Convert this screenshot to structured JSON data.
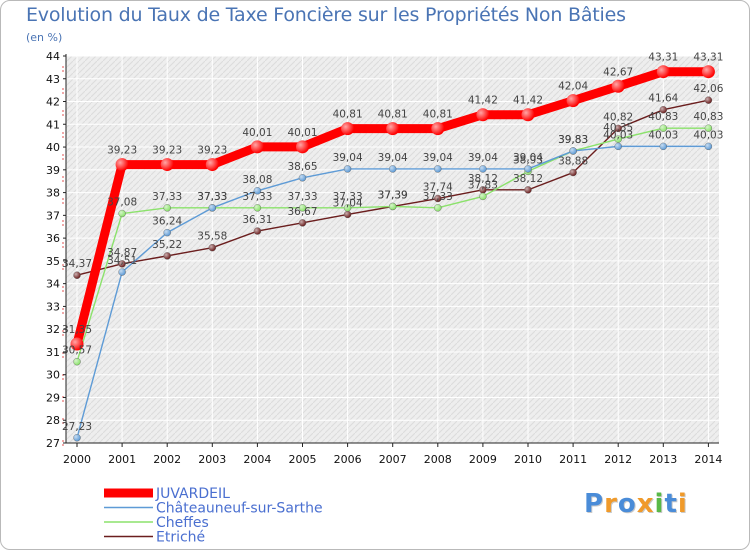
{
  "chart_data": {
    "type": "line",
    "title": "Evolution du Taux de Taxe Foncière sur les Propriétés Non Bâties",
    "subtitle": "(en %)",
    "x": [
      "2000",
      "2001",
      "2002",
      "2003",
      "2004",
      "2005",
      "2006",
      "2007",
      "2008",
      "2009",
      "2010",
      "2011",
      "2012",
      "2013",
      "2014"
    ],
    "ylim": [
      27,
      44
    ],
    "yticks": [
      27,
      28,
      29,
      30,
      31,
      32,
      33,
      34,
      35,
      36,
      37,
      38,
      39,
      40,
      41,
      42,
      43,
      44
    ],
    "grid": true,
    "legend_position": "bottom-left",
    "series": [
      {
        "name": "JUVARDEIL",
        "color": "#ff0000",
        "labels": true,
        "values": [
          31.35,
          39.23,
          39.23,
          39.23,
          40.01,
          40.01,
          40.81,
          40.81,
          40.81,
          41.42,
          41.42,
          42.04,
          42.67,
          43.31,
          43.31
        ]
      },
      {
        "name": "Châteauneuf-sur-Sarthe",
        "color": "#5e9bd6",
        "labels": true,
        "values": [
          27.23,
          34.51,
          36.24,
          37.33,
          38.08,
          38.65,
          39.04,
          39.04,
          39.04,
          39.04,
          39.04,
          39.83,
          40.03,
          40.03,
          40.03
        ]
      },
      {
        "name": "Cheffes",
        "color": "#8be26b",
        "labels": true,
        "values": [
          30.57,
          37.08,
          37.33,
          37.33,
          37.33,
          37.33,
          37.33,
          37.39,
          37.33,
          37.83,
          38.93,
          39.83,
          40.35,
          40.83,
          40.83
        ]
      },
      {
        "name": "Etriché",
        "color": "#6b1e1e",
        "labels": true,
        "values": [
          34.37,
          34.87,
          35.22,
          35.58,
          36.31,
          36.67,
          37.04,
          37.39,
          37.74,
          38.12,
          38.12,
          38.88,
          40.82,
          41.64,
          42.06
        ]
      }
    ]
  },
  "logo": {
    "letters": [
      "P",
      "r",
      "o",
      "x",
      "i",
      "t",
      "i"
    ],
    "colors": [
      "#4a8cd8",
      "#f09a2a",
      "#4a8cd8",
      "#f09a2a",
      "#59b947",
      "#4a8cd8",
      "#f09a2a"
    ]
  }
}
